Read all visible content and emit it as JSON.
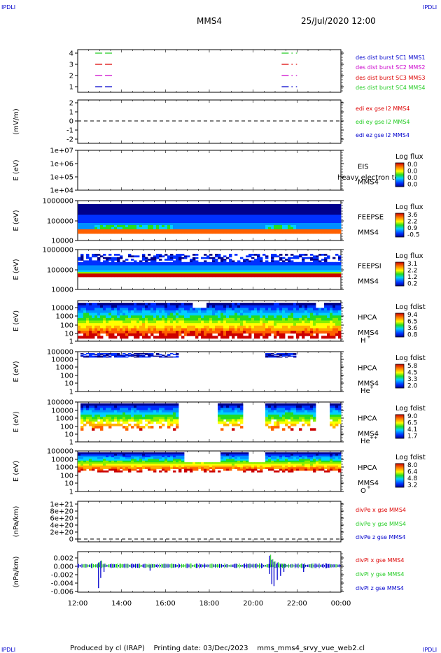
{
  "corner_labels": {
    "tl": "IPDLI",
    "tr": "IPDLI",
    "bl": "IPDLI",
    "br": "IPDLI"
  },
  "header": {
    "spacecraft": "MMS4",
    "datetime": "25/Jul/2020 12:00"
  },
  "footer": {
    "text": "Produced by cl (IRAP)    Printing date: 03/Dec/2023    mms_mms4_srvy_vue_web2.cl"
  },
  "x_axis": {
    "ticks": [
      "12:00",
      "14:00",
      "16:00",
      "18:00",
      "20:00",
      "22:00",
      "00:00"
    ],
    "range_hours": [
      12,
      24
    ]
  },
  "colors": {
    "red": "#dd0000",
    "green": "#22cc22",
    "blue": "#0000cc",
    "magenta": "#cc00cc",
    "black": "#000000"
  },
  "chart_data": [
    {
      "type": "line",
      "id": "burst",
      "y_ticks": [
        "4",
        "3",
        "2",
        "1"
      ],
      "legend": [
        {
          "text": "des dist burst SC1 MMS1",
          "color": "#0000cc"
        },
        {
          "text": "des dist burst SC2 MMS2",
          "color": "#cc00cc"
        },
        {
          "text": "des dist burst SC3 MMS3",
          "color": "#dd0000"
        },
        {
          "text": "des dist burst SC4 MMS4",
          "color": "#22cc22"
        }
      ],
      "series": [
        {
          "level": 4,
          "color": "#22cc22",
          "intervals": [
            [
              12.8,
              13.6
            ],
            [
              21.3,
              21.8
            ],
            [
              21.95,
              22.0
            ]
          ]
        },
        {
          "level": 3,
          "color": "#dd0000",
          "intervals": [
            [
              12.8,
              13.6
            ],
            [
              21.3,
              21.8
            ],
            [
              21.95,
              22.0
            ]
          ]
        },
        {
          "level": 2,
          "color": "#cc00cc",
          "intervals": [
            [
              12.8,
              13.6
            ],
            [
              21.3,
              21.8
            ],
            [
              21.95,
              22.0
            ]
          ]
        },
        {
          "level": 1,
          "color": "#0000cc",
          "intervals": [
            [
              12.8,
              13.6
            ],
            [
              21.3,
              21.8
            ],
            [
              21.95,
              22.0
            ]
          ]
        }
      ]
    },
    {
      "type": "line",
      "id": "edi",
      "ylabel": "(mV/m)",
      "y_ticks": [
        "2",
        "1",
        "0",
        "-1",
        "-2"
      ],
      "ylim": [
        -2,
        2
      ],
      "zero_line": true,
      "legend": [
        {
          "text": "edi ex gse l2 MMS4",
          "color": "#dd0000"
        },
        {
          "text": "edi ey gse l2 MMS4",
          "color": "#22cc22"
        },
        {
          "text": "edi ez gse l2 MMS4",
          "color": "#0000cc"
        }
      ]
    },
    {
      "type": "heatmap",
      "id": "eis",
      "ylabel": "E (eV)",
      "y_ticks": [
        "1e+07",
        "1e+06",
        "1e+05",
        "1e+04"
      ],
      "instrument": "EIS",
      "spacecraft": "MMS4",
      "overlay_text": "heavy electron to",
      "colorbar": {
        "title": "Log flux",
        "ticks": [
          "0.0",
          "0.0",
          "0.0",
          "0.0"
        ]
      }
    },
    {
      "type": "heatmap",
      "id": "feepse",
      "ylabel": "E (eV)",
      "y_ticks": [
        "1000000",
        "100000",
        "10000"
      ],
      "instrument": "FEEPSE",
      "spacecraft": "MMS4",
      "colorbar": {
        "title": "Log flux",
        "ticks": [
          "3.6",
          "2.2",
          "0.9",
          "-0.5"
        ]
      }
    },
    {
      "type": "heatmap",
      "id": "feepsi",
      "ylabel": "E (eV)",
      "y_ticks": [
        "1000000",
        "100000",
        "10000"
      ],
      "instrument": "FEEPSI",
      "spacecraft": "MMS4",
      "colorbar": {
        "title": "Log flux",
        "ticks": [
          "3.1",
          "2.2",
          "1.2",
          "0.2"
        ]
      }
    },
    {
      "type": "heatmap",
      "id": "hpca_h",
      "ylabel": "E (eV)",
      "y_ticks": [
        "10000",
        "1000",
        "100",
        "10",
        "1"
      ],
      "instrument": "HPCA",
      "spacecraft": "MMS4",
      "species": "H",
      "species_sup": "+",
      "colorbar": {
        "title": "Log fdist",
        "ticks": [
          "9.4",
          "6.5",
          "3.6",
          "0.8"
        ]
      }
    },
    {
      "type": "heatmap",
      "id": "hpca_he1",
      "ylabel": "E (eV)",
      "y_ticks": [
        "100000",
        "10000",
        "1000",
        "100",
        "10",
        "1"
      ],
      "instrument": "HPCA",
      "spacecraft": "MMS4",
      "species": "He",
      "species_sup": "+",
      "colorbar": {
        "title": "Log fdist",
        "ticks": [
          "5.8",
          "4.5",
          "3.3",
          "2.0"
        ]
      }
    },
    {
      "type": "heatmap",
      "id": "hpca_he2",
      "ylabel": "E (eV)",
      "y_ticks": [
        "100000",
        "10000",
        "1000",
        "100",
        "10",
        "1"
      ],
      "instrument": "HPCA",
      "spacecraft": "MMS4",
      "species": "He",
      "species_sup": "++",
      "colorbar": {
        "title": "Log fdist",
        "ticks": [
          "9.0",
          "6.5",
          "4.1",
          "1.7"
        ]
      }
    },
    {
      "type": "heatmap",
      "id": "hpca_o",
      "ylabel": "E (eV)",
      "y_ticks": [
        "100000",
        "10000",
        "1000",
        "100",
        "10",
        "1"
      ],
      "instrument": "HPCA",
      "spacecraft": "MMS4",
      "species": "O",
      "species_sup": "+",
      "colorbar": {
        "title": "Log fdist",
        "ticks": [
          "8.0",
          "6.4",
          "4.8",
          "3.2"
        ]
      }
    },
    {
      "type": "line",
      "id": "divpe",
      "ylabel": "(nPa/km)",
      "y_ticks": [
        "1e+21",
        "8e+20",
        "6e+20",
        "4e+20",
        "2e+20",
        "0"
      ],
      "ylim": [
        0,
        1.1e+21
      ],
      "zero_line": true,
      "legend": [
        {
          "text": "divPe x gse MMS4",
          "color": "#dd0000"
        },
        {
          "text": "divPe y gse MMS4",
          "color": "#22cc22"
        },
        {
          "text": "divPe z gse MMS4",
          "color": "#0000cc"
        }
      ]
    },
    {
      "type": "line",
      "id": "divpi",
      "ylabel": "(nPa/km)",
      "y_ticks": [
        "0.002",
        "0.000",
        "-0.002",
        "-0.004",
        "-0.006"
      ],
      "ylim": [
        -0.0065,
        0.0035
      ],
      "legend": [
        {
          "text": "divPi x gse MMS4",
          "color": "#dd0000"
        },
        {
          "text": "divPi y gse MMS4",
          "color": "#22cc22"
        },
        {
          "text": "divPi z gse MMS4",
          "color": "#0000cc"
        }
      ],
      "spikes": [
        {
          "t": 12.95,
          "min": -0.0055,
          "max": 0.0008
        },
        {
          "t": 13.05,
          "min": -0.003,
          "max": 0.0012
        },
        {
          "t": 13.2,
          "min": -0.0015,
          "max": 0.0005
        },
        {
          "t": 15.3,
          "min": -0.0012,
          "max": 0.0003
        },
        {
          "t": 20.75,
          "min": -0.002,
          "max": 0.0025
        },
        {
          "t": 20.85,
          "min": -0.0045,
          "max": 0.0015
        },
        {
          "t": 20.95,
          "min": -0.005,
          "max": 0.001
        },
        {
          "t": 21.1,
          "min": -0.0035,
          "max": 0.0008
        },
        {
          "t": 21.25,
          "min": -0.0025,
          "max": 0.0005
        },
        {
          "t": 21.4,
          "min": -0.0015,
          "max": 0.0005
        },
        {
          "t": 22.3,
          "min": -0.0015,
          "max": 0.0003
        }
      ]
    }
  ]
}
